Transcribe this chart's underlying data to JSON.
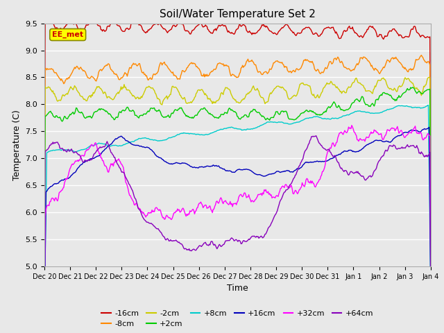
{
  "title": "Soil/Water Temperature Set 2",
  "xlabel": "Time",
  "ylabel": "Temperature (C)",
  "ylim": [
    5.0,
    9.5
  ],
  "yticks": [
    5.0,
    5.5,
    6.0,
    6.5,
    7.0,
    7.5,
    8.0,
    8.5,
    9.0,
    9.5
  ],
  "background_color": "#e8e8e8",
  "plot_bg_color": "#e8e8e8",
  "grid_color": "#ffffff",
  "annotation_text": "EE_met",
  "annotation_color": "#cc0000",
  "annotation_bg": "#ffff00",
  "series": [
    {
      "label": "-16cm",
      "color": "#cc0000"
    },
    {
      "label": "-8cm",
      "color": "#ff8800"
    },
    {
      "label": "-2cm",
      "color": "#cccc00"
    },
    {
      "label": "+2cm",
      "color": "#00cc00"
    },
    {
      "label": "+8cm",
      "color": "#00cccc"
    },
    {
      "label": "+16cm",
      "color": "#0000bb"
    },
    {
      "label": "+32cm",
      "color": "#ff00ff"
    },
    {
      "label": "+64cm",
      "color": "#8800bb"
    }
  ],
  "figsize": [
    6.4,
    4.8
  ],
  "dpi": 100
}
